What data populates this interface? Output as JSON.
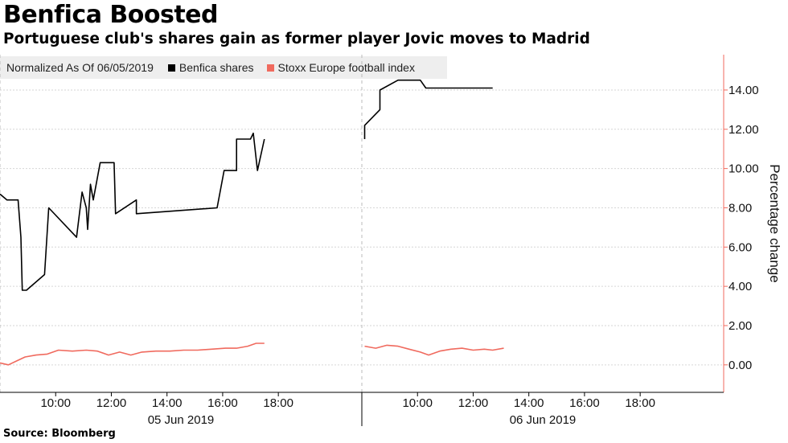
{
  "title": "Benfica Boosted",
  "subtitle": "Portuguese club's shares gain as former player Jovic moves to Madrid",
  "source": "Source: Bloomberg",
  "legend": {
    "note": "Normalized As Of 06/05/2019",
    "items": [
      {
        "label": "Benfica shares",
        "color": "#000000"
      },
      {
        "label": "Stoxx Europe football index",
        "color": "#f06a5e"
      }
    ]
  },
  "chart_data": {
    "type": "line",
    "ylabel": "Percentage change",
    "ylim": [
      -1.4,
      15.8
    ],
    "yticks": [
      0,
      2,
      4,
      6,
      8,
      10,
      12,
      14
    ],
    "ytick_labels": [
      "0.00",
      "2.00",
      "4.00",
      "6.00",
      "8.00",
      "10.00",
      "12.00",
      "14.00"
    ],
    "y_axis_position": "right",
    "grid": "horizontal",
    "x_unit": "hours",
    "day_labels": [
      {
        "label": "05 Jun 2019",
        "start": 7.9,
        "end": 20.9
      },
      {
        "label": "06 Jun 2019",
        "start": 20.9,
        "end": 33.9
      }
    ],
    "xticks": [
      {
        "x": 9.9,
        "label": "10:00"
      },
      {
        "x": 11.9,
        "label": "12:00"
      },
      {
        "x": 13.9,
        "label": "14:00"
      },
      {
        "x": 15.9,
        "label": "16:00"
      },
      {
        "x": 17.9,
        "label": "18:00"
      },
      {
        "x": 22.9,
        "label": "10:00"
      },
      {
        "x": 24.9,
        "label": "12:00"
      },
      {
        "x": 26.9,
        "label": "14:00"
      },
      {
        "x": 28.9,
        "label": "16:00"
      },
      {
        "x": 30.9,
        "label": "18:00"
      }
    ],
    "xlim": [
      7.9,
      33.9
    ],
    "series": [
      {
        "name": "Benfica shares",
        "color": "#000000",
        "segments": [
          [
            [
              7.9,
              8.7
            ],
            [
              8.15,
              8.4
            ],
            [
              8.55,
              8.4
            ],
            [
              8.65,
              6.5
            ],
            [
              8.7,
              3.8
            ],
            [
              8.85,
              3.8
            ],
            [
              9.5,
              4.6
            ],
            [
              9.65,
              8.0
            ],
            [
              10.65,
              6.5
            ],
            [
              10.85,
              8.8
            ],
            [
              11.0,
              8.0
            ],
            [
              11.05,
              6.9
            ],
            [
              11.15,
              9.2
            ],
            [
              11.25,
              8.4
            ],
            [
              11.5,
              10.3
            ],
            [
              12.0,
              10.3
            ],
            [
              12.05,
              7.7
            ],
            [
              12.8,
              8.4
            ],
            [
              12.8,
              7.7
            ],
            [
              15.7,
              8.0
            ],
            [
              15.95,
              9.9
            ],
            [
              16.4,
              9.9
            ],
            [
              16.4,
              11.5
            ],
            [
              16.9,
              11.5
            ],
            [
              17.0,
              11.8
            ],
            [
              17.15,
              9.9
            ],
            [
              17.4,
              11.5
            ]
          ],
          [
            [
              21.0,
              11.5
            ],
            [
              21.0,
              12.2
            ],
            [
              21.55,
              13.0
            ],
            [
              21.55,
              14.0
            ],
            [
              22.2,
              14.5
            ],
            [
              23.0,
              14.5
            ],
            [
              23.2,
              14.1
            ],
            [
              25.6,
              14.1
            ]
          ]
        ]
      },
      {
        "name": "Stoxx Europe football index",
        "color": "#f06a5e",
        "segments": [
          [
            [
              7.9,
              0.1
            ],
            [
              8.2,
              0.0
            ],
            [
              8.5,
              0.2
            ],
            [
              8.8,
              0.4
            ],
            [
              9.2,
              0.5
            ],
            [
              9.6,
              0.55
            ],
            [
              10.0,
              0.75
            ],
            [
              10.5,
              0.7
            ],
            [
              11.0,
              0.75
            ],
            [
              11.4,
              0.7
            ],
            [
              11.8,
              0.5
            ],
            [
              12.2,
              0.65
            ],
            [
              12.6,
              0.5
            ],
            [
              13.0,
              0.65
            ],
            [
              13.5,
              0.7
            ],
            [
              14.0,
              0.7
            ],
            [
              14.5,
              0.75
            ],
            [
              15.0,
              0.75
            ],
            [
              15.5,
              0.8
            ],
            [
              16.0,
              0.85
            ],
            [
              16.4,
              0.85
            ],
            [
              16.8,
              0.95
            ],
            [
              17.1,
              1.1
            ],
            [
              17.4,
              1.1
            ]
          ],
          [
            [
              21.0,
              0.95
            ],
            [
              21.4,
              0.85
            ],
            [
              21.8,
              1.0
            ],
            [
              22.2,
              0.95
            ],
            [
              22.6,
              0.8
            ],
            [
              23.0,
              0.65
            ],
            [
              23.3,
              0.5
            ],
            [
              23.7,
              0.7
            ],
            [
              24.1,
              0.8
            ],
            [
              24.5,
              0.85
            ],
            [
              24.9,
              0.75
            ],
            [
              25.3,
              0.8
            ],
            [
              25.6,
              0.75
            ],
            [
              26.0,
              0.85
            ]
          ]
        ]
      }
    ]
  }
}
